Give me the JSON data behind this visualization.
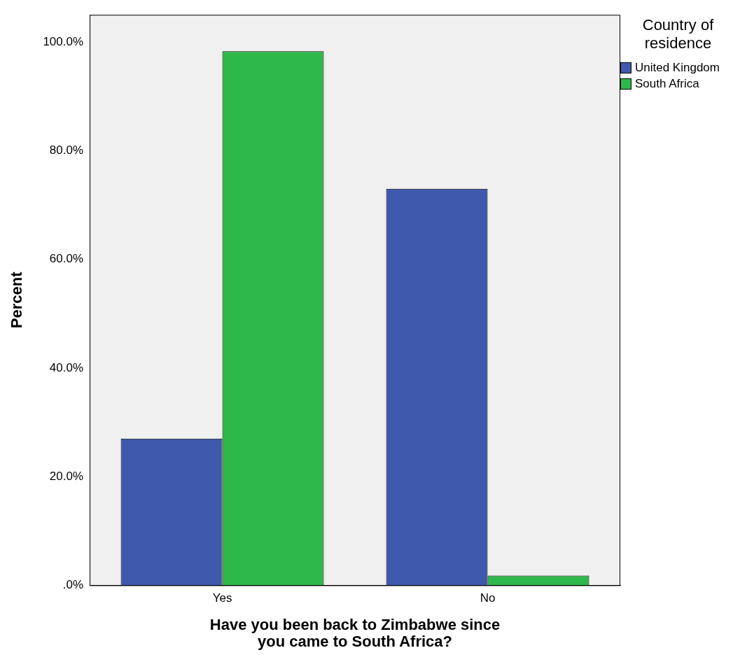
{
  "chart_data": {
    "type": "bar",
    "xlabel": "Have you been back to Zimbabwe since you came to South Africa?",
    "ylabel": "Percent",
    "legend_title": "Country of residence",
    "legend": "top right",
    "categories": [
      "Yes",
      "No"
    ],
    "series": [
      {
        "name": "United Kingdom",
        "color": "#3f59ad",
        "values": [
          27.0,
          73.0
        ]
      },
      {
        "name": "South Africa",
        "color": "#2fb84a",
        "values": [
          98.3,
          1.8
        ]
      }
    ],
    "ylim": [
      0,
      105
    ],
    "yticks": [
      {
        "value": 0,
        "label": ".0%"
      },
      {
        "value": 20,
        "label": "20.0%"
      },
      {
        "value": 40,
        "label": "40.0%"
      },
      {
        "value": 60,
        "label": "60.0%"
      },
      {
        "value": 80,
        "label": "80.0%"
      },
      {
        "value": 100,
        "label": "100.0%"
      }
    ],
    "grid": false
  }
}
